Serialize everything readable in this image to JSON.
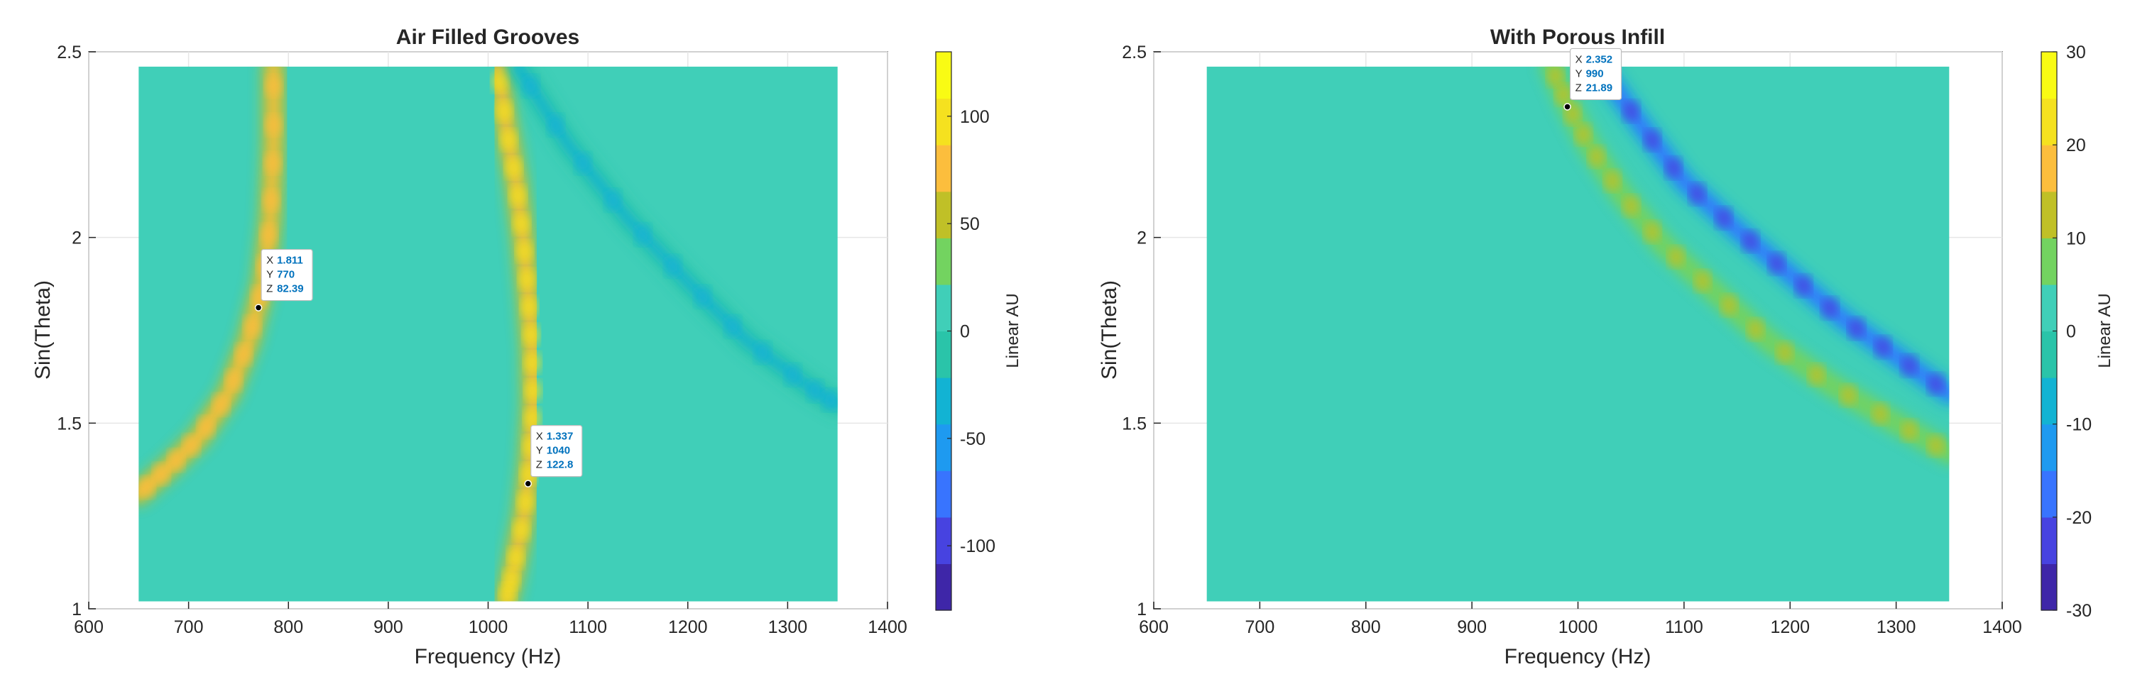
{
  "colors": {
    "background": "#40cfb8",
    "colormap": [
      "#3e26a8",
      "#4743e0",
      "#3874fe",
      "#1e9af0",
      "#12b3d3",
      "#2ac4a9",
      "#40cfb8",
      "#73d360",
      "#c0c027",
      "#fcbe3d",
      "#f5e11f",
      "#f9fb14"
    ],
    "datatip_marker": "#000000",
    "datatip_value": "#0072BD"
  },
  "chart_data": [
    {
      "type": "heatmap",
      "title": "Air Filled Grooves",
      "xlabel": "Frequency (Hz)",
      "ylabel": "Sin(Theta)",
      "xlim": [
        600,
        1400
      ],
      "ylim": [
        1,
        2.5
      ],
      "x_ticks": [
        "600",
        "700",
        "800",
        "900",
        "1000",
        "1100",
        "1200",
        "1300",
        "1400"
      ],
      "y_ticks": [
        "1",
        "1.5",
        "2",
        "2.5"
      ],
      "data_extent": {
        "x": [
          650,
          1350
        ],
        "y": [
          1.02,
          2.46
        ]
      },
      "colorbar": {
        "label": "Linear AU",
        "range": [
          -130,
          130
        ],
        "ticks": [
          "-100",
          "-50",
          "0",
          "50",
          "100"
        ]
      },
      "grid": true,
      "features": [
        {
          "kind": "positive-ridge",
          "points": [
            [
              650,
              1.31
            ],
            [
              680,
              1.38
            ],
            [
              710,
              1.46
            ],
            [
              740,
              1.58
            ],
            [
              760,
              1.72
            ],
            [
              775,
              1.88
            ],
            [
              782,
              2.05
            ],
            [
              785,
              2.25
            ],
            [
              785,
              2.46
            ]
          ],
          "peak": 90
        },
        {
          "kind": "positive-ridge",
          "points": [
            [
              1010,
              2.46
            ],
            [
              1018,
              2.3
            ],
            [
              1028,
              2.15
            ],
            [
              1035,
              2.0
            ],
            [
              1040,
              1.85
            ],
            [
              1044,
              1.7
            ],
            [
              1045,
              1.55
            ],
            [
              1042,
              1.4
            ],
            [
              1036,
              1.25
            ],
            [
              1025,
              1.1
            ],
            [
              1018,
              1.02
            ]
          ],
          "peak": 100
        },
        {
          "kind": "negative-ridge",
          "points": [
            [
              1030,
              2.46
            ],
            [
              1080,
              2.25
            ],
            [
              1140,
              2.05
            ],
            [
              1200,
              1.88
            ],
            [
              1260,
              1.72
            ],
            [
              1320,
              1.6
            ],
            [
              1350,
              1.55
            ]
          ],
          "peak": -28
        }
      ],
      "datatips": [
        {
          "x_label": "X",
          "x_value": "1.811",
          "y_label": "Y",
          "y_value": "770",
          "z_label": "Z",
          "z_value": "82.39",
          "anchor": [
            770,
            1.811
          ]
        },
        {
          "x_label": "X",
          "x_value": "1.337",
          "y_label": "Y",
          "y_value": "1040",
          "z_label": "Z",
          "z_value": "122.8",
          "anchor": [
            1040,
            1.337
          ]
        }
      ]
    },
    {
      "type": "heatmap",
      "title": "With Porous Infill",
      "xlabel": "Frequency (Hz)",
      "ylabel": "Sin(Theta)",
      "xlim": [
        600,
        1400
      ],
      "ylim": [
        1,
        2.5
      ],
      "x_ticks": [
        "600",
        "700",
        "800",
        "900",
        "1000",
        "1100",
        "1200",
        "1300",
        "1400"
      ],
      "y_ticks": [
        "1",
        "1.5",
        "2",
        "2.5"
      ],
      "data_extent": {
        "x": [
          650,
          1350
        ],
        "y": [
          1.02,
          2.46
        ]
      },
      "colorbar": {
        "label": "Linear AU",
        "range": [
          -30,
          30
        ],
        "ticks": [
          "-30",
          "-20",
          "-10",
          "0",
          "10",
          "20",
          "30"
        ]
      },
      "grid": true,
      "features": [
        {
          "kind": "negative-ridge",
          "points": [
            [
              1020,
              2.46
            ],
            [
              1060,
              2.3
            ],
            [
              1100,
              2.15
            ],
            [
              1150,
              2.02
            ],
            [
              1200,
              1.9
            ],
            [
              1250,
              1.78
            ],
            [
              1300,
              1.68
            ],
            [
              1350,
              1.58
            ]
          ],
          "peak": -24
        },
        {
          "kind": "positive-ridge",
          "points": [
            [
              975,
              2.46
            ],
            [
              990,
              2.36
            ],
            [
              1010,
              2.25
            ],
            [
              1040,
              2.12
            ],
            [
              1080,
              1.98
            ],
            [
              1130,
              1.85
            ],
            [
              1180,
              1.72
            ],
            [
              1240,
              1.6
            ],
            [
              1300,
              1.5
            ],
            [
              1350,
              1.42
            ]
          ],
          "peak": 12
        }
      ],
      "datatips": [
        {
          "x_label": "X",
          "x_value": "2.352",
          "y_label": "Y",
          "y_value": "990",
          "z_label": "Z",
          "z_value": "21.89",
          "anchor": [
            990,
            2.352
          ]
        }
      ]
    }
  ]
}
